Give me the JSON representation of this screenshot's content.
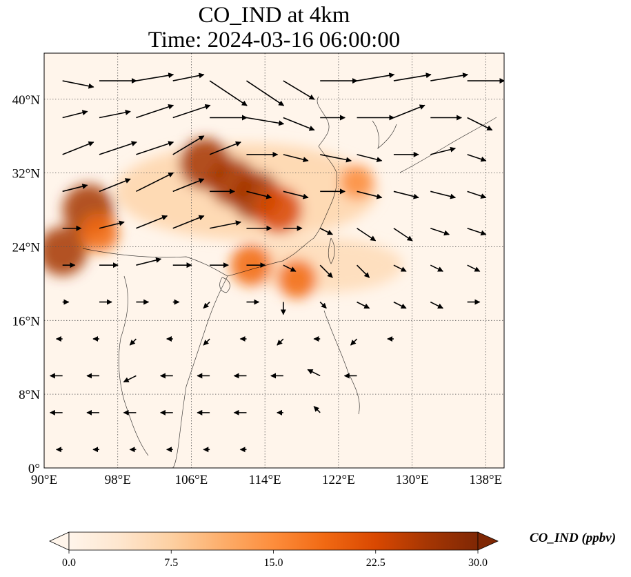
{
  "chart_data": {
    "type": "heatmap",
    "title": "CO_IND at 4km",
    "subtitle": "Time: 2024-03-16 06:00:00",
    "x_ticks": [
      "90°E",
      "98°E",
      "106°E",
      "114°E",
      "122°E",
      "130°E",
      "138°E"
    ],
    "y_ticks": [
      "0°",
      "8°N",
      "16°N",
      "24°N",
      "32°N",
      "40°N"
    ],
    "x_values": [
      90,
      98,
      106,
      114,
      122,
      130,
      138
    ],
    "y_values": [
      0,
      8,
      16,
      24,
      32,
      40
    ],
    "xlim": [
      90,
      140
    ],
    "ylim": [
      0,
      45
    ],
    "grid": true,
    "colorbar": {
      "label": "CO_IND (ppbv)",
      "ticks": [
        "0.0",
        "7.5",
        "15.0",
        "22.5",
        "30.0"
      ],
      "min": 0,
      "max": 30,
      "extend": "both",
      "colormap": [
        "#fff5eb",
        "#fee6ce",
        "#fdd0a2",
        "#fdae6b",
        "#fd8d3c",
        "#f16913",
        "#d94801",
        "#a63603",
        "#7f2704"
      ]
    },
    "hotspots": [
      {
        "lon": 107.5,
        "lat": 33.0,
        "value": 28
      },
      {
        "lon": 110.5,
        "lat": 31.0,
        "value": 25
      },
      {
        "lon": 113.0,
        "lat": 29.5,
        "value": 27
      },
      {
        "lon": 115.5,
        "lat": 28.0,
        "value": 24
      },
      {
        "lon": 94.8,
        "lat": 28.0,
        "value": 28
      },
      {
        "lon": 92.0,
        "lat": 23.5,
        "value": 26
      },
      {
        "lon": 96.0,
        "lat": 25.5,
        "value": 18
      },
      {
        "lon": 112.5,
        "lat": 22.0,
        "value": 20
      },
      {
        "lon": 117.5,
        "lat": 20.5,
        "value": 18
      },
      {
        "lon": 124.0,
        "lat": 31.0,
        "value": 14
      }
    ],
    "wind_vectors": [
      {
        "lon": 92,
        "lat": 42,
        "u": 5,
        "v": -1
      },
      {
        "lon": 96,
        "lat": 42,
        "u": 6,
        "v": 0
      },
      {
        "lon": 100,
        "lat": 42,
        "u": 6,
        "v": 1
      },
      {
        "lon": 104,
        "lat": 42,
        "u": 5,
        "v": 1
      },
      {
        "lon": 108,
        "lat": 42,
        "u": 6,
        "v": -4
      },
      {
        "lon": 112,
        "lat": 42,
        "u": 6,
        "v": -4
      },
      {
        "lon": 116,
        "lat": 42,
        "u": 5,
        "v": -3
      },
      {
        "lon": 120,
        "lat": 42,
        "u": 6,
        "v": 0
      },
      {
        "lon": 124,
        "lat": 42,
        "u": 6,
        "v": 1
      },
      {
        "lon": 128,
        "lat": 42,
        "u": 6,
        "v": 1
      },
      {
        "lon": 132,
        "lat": 42,
        "u": 6,
        "v": 1
      },
      {
        "lon": 136,
        "lat": 42,
        "u": 6,
        "v": 0
      },
      {
        "lon": 92,
        "lat": 38,
        "u": 4,
        "v": 1
      },
      {
        "lon": 96,
        "lat": 38,
        "u": 5,
        "v": 1
      },
      {
        "lon": 100,
        "lat": 38,
        "u": 6,
        "v": 2
      },
      {
        "lon": 104,
        "lat": 38,
        "u": 6,
        "v": 2
      },
      {
        "lon": 108,
        "lat": 38,
        "u": 6,
        "v": 0
      },
      {
        "lon": 112,
        "lat": 38,
        "u": 6,
        "v": -1
      },
      {
        "lon": 116,
        "lat": 38,
        "u": 5,
        "v": -2
      },
      {
        "lon": 120,
        "lat": 38,
        "u": 4,
        "v": 0
      },
      {
        "lon": 124,
        "lat": 38,
        "u": 6,
        "v": 0
      },
      {
        "lon": 128,
        "lat": 38,
        "u": 5,
        "v": 2
      },
      {
        "lon": 132,
        "lat": 38,
        "u": 5,
        "v": 0
      },
      {
        "lon": 136,
        "lat": 38,
        "u": 4,
        "v": -2
      },
      {
        "lon": 92,
        "lat": 34,
        "u": 5,
        "v": 2
      },
      {
        "lon": 96,
        "lat": 34,
        "u": 6,
        "v": 2
      },
      {
        "lon": 100,
        "lat": 34,
        "u": 6,
        "v": 2
      },
      {
        "lon": 104,
        "lat": 34,
        "u": 5,
        "v": 3
      },
      {
        "lon": 108,
        "lat": 34,
        "u": 5,
        "v": 2
      },
      {
        "lon": 112,
        "lat": 34,
        "u": 5,
        "v": 0
      },
      {
        "lon": 116,
        "lat": 34,
        "u": 4,
        "v": -1
      },
      {
        "lon": 120,
        "lat": 34,
        "u": 5,
        "v": -1
      },
      {
        "lon": 124,
        "lat": 34,
        "u": 4,
        "v": -1
      },
      {
        "lon": 128,
        "lat": 34,
        "u": 4,
        "v": 0
      },
      {
        "lon": 132,
        "lat": 34,
        "u": 4,
        "v": 1
      },
      {
        "lon": 136,
        "lat": 34,
        "u": 3,
        "v": -1
      },
      {
        "lon": 92,
        "lat": 30,
        "u": 4,
        "v": 1
      },
      {
        "lon": 96,
        "lat": 30,
        "u": 5,
        "v": 2
      },
      {
        "lon": 100,
        "lat": 30,
        "u": 6,
        "v": 3
      },
      {
        "lon": 104,
        "lat": 30,
        "u": 5,
        "v": 2
      },
      {
        "lon": 108,
        "lat": 30,
        "u": 4,
        "v": 0
      },
      {
        "lon": 112,
        "lat": 30,
        "u": 4,
        "v": -1
      },
      {
        "lon": 116,
        "lat": 30,
        "u": 4,
        "v": -1
      },
      {
        "lon": 120,
        "lat": 30,
        "u": 4,
        "v": 0
      },
      {
        "lon": 124,
        "lat": 30,
        "u": 4,
        "v": -1
      },
      {
        "lon": 128,
        "lat": 30,
        "u": 4,
        "v": -1
      },
      {
        "lon": 132,
        "lat": 30,
        "u": 4,
        "v": -1
      },
      {
        "lon": 136,
        "lat": 30,
        "u": 3,
        "v": -1
      },
      {
        "lon": 92,
        "lat": 26,
        "u": 3,
        "v": 0
      },
      {
        "lon": 96,
        "lat": 26,
        "u": 4,
        "v": 1
      },
      {
        "lon": 100,
        "lat": 26,
        "u": 5,
        "v": 2
      },
      {
        "lon": 104,
        "lat": 26,
        "u": 5,
        "v": 2
      },
      {
        "lon": 108,
        "lat": 26,
        "u": 5,
        "v": 1
      },
      {
        "lon": 112,
        "lat": 26,
        "u": 4,
        "v": 0
      },
      {
        "lon": 116,
        "lat": 26,
        "u": 3,
        "v": 0
      },
      {
        "lon": 120,
        "lat": 26,
        "u": 2,
        "v": -1
      },
      {
        "lon": 124,
        "lat": 26,
        "u": 3,
        "v": -2
      },
      {
        "lon": 128,
        "lat": 26,
        "u": 3,
        "v": -2
      },
      {
        "lon": 132,
        "lat": 26,
        "u": 3,
        "v": -1
      },
      {
        "lon": 136,
        "lat": 26,
        "u": 3,
        "v": -1
      },
      {
        "lon": 92,
        "lat": 22,
        "u": 2,
        "v": 0
      },
      {
        "lon": 96,
        "lat": 22,
        "u": 3,
        "v": 0
      },
      {
        "lon": 100,
        "lat": 22,
        "u": 4,
        "v": 1
      },
      {
        "lon": 104,
        "lat": 22,
        "u": 3,
        "v": 0
      },
      {
        "lon": 108,
        "lat": 22,
        "u": 3,
        "v": 0
      },
      {
        "lon": 112,
        "lat": 22,
        "u": 3,
        "v": 0
      },
      {
        "lon": 116,
        "lat": 22,
        "u": 2,
        "v": -1
      },
      {
        "lon": 120,
        "lat": 22,
        "u": 2,
        "v": -2
      },
      {
        "lon": 124,
        "lat": 22,
        "u": 2,
        "v": -2
      },
      {
        "lon": 128,
        "lat": 22,
        "u": 2,
        "v": -1
      },
      {
        "lon": 132,
        "lat": 22,
        "u": 2,
        "v": -1
      },
      {
        "lon": 136,
        "lat": 22,
        "u": 2,
        "v": -1
      },
      {
        "lon": 92,
        "lat": 18,
        "u": 1,
        "v": 0
      },
      {
        "lon": 96,
        "lat": 18,
        "u": 2,
        "v": 0
      },
      {
        "lon": 100,
        "lat": 18,
        "u": 2,
        "v": 0
      },
      {
        "lon": 104,
        "lat": 18,
        "u": 1,
        "v": 0
      },
      {
        "lon": 108,
        "lat": 18,
        "u": -1,
        "v": -1
      },
      {
        "lon": 112,
        "lat": 18,
        "u": 2,
        "v": 0
      },
      {
        "lon": 116,
        "lat": 18,
        "u": 0,
        "v": -2
      },
      {
        "lon": 120,
        "lat": 18,
        "u": 1,
        "v": -1
      },
      {
        "lon": 124,
        "lat": 18,
        "u": 2,
        "v": -1
      },
      {
        "lon": 128,
        "lat": 18,
        "u": 2,
        "v": -1
      },
      {
        "lon": 132,
        "lat": 18,
        "u": 2,
        "v": -1
      },
      {
        "lon": 136,
        "lat": 18,
        "u": 2,
        "v": 0
      },
      {
        "lon": 92,
        "lat": 14,
        "u": -1,
        "v": 0
      },
      {
        "lon": 96,
        "lat": 14,
        "u": -1,
        "v": 0
      },
      {
        "lon": 100,
        "lat": 14,
        "u": -1,
        "v": -1
      },
      {
        "lon": 104,
        "lat": 14,
        "u": -1,
        "v": 0
      },
      {
        "lon": 108,
        "lat": 14,
        "u": -1,
        "v": -1
      },
      {
        "lon": 112,
        "lat": 14,
        "u": -1,
        "v": 0
      },
      {
        "lon": 116,
        "lat": 14,
        "u": -1,
        "v": -1
      },
      {
        "lon": 120,
        "lat": 14,
        "u": -1,
        "v": 0
      },
      {
        "lon": 124,
        "lat": 14,
        "u": -1,
        "v": -1
      },
      {
        "lon": 128,
        "lat": 14,
        "u": -1,
        "v": 0
      },
      {
        "lon": 92,
        "lat": 10,
        "u": -2,
        "v": 0
      },
      {
        "lon": 96,
        "lat": 10,
        "u": -2,
        "v": 0
      },
      {
        "lon": 100,
        "lat": 10,
        "u": -2,
        "v": -1
      },
      {
        "lon": 104,
        "lat": 10,
        "u": -2,
        "v": 0
      },
      {
        "lon": 108,
        "lat": 10,
        "u": -2,
        "v": 0
      },
      {
        "lon": 112,
        "lat": 10,
        "u": -2,
        "v": 0
      },
      {
        "lon": 116,
        "lat": 10,
        "u": -2,
        "v": 0
      },
      {
        "lon": 120,
        "lat": 10,
        "u": -2,
        "v": 1
      },
      {
        "lon": 124,
        "lat": 10,
        "u": -2,
        "v": 0
      },
      {
        "lon": 92,
        "lat": 6,
        "u": -2,
        "v": 0
      },
      {
        "lon": 96,
        "lat": 6,
        "u": -2,
        "v": 0
      },
      {
        "lon": 100,
        "lat": 6,
        "u": -2,
        "v": 0
      },
      {
        "lon": 104,
        "lat": 6,
        "u": -2,
        "v": 0
      },
      {
        "lon": 108,
        "lat": 6,
        "u": -2,
        "v": 0
      },
      {
        "lon": 112,
        "lat": 6,
        "u": -2,
        "v": 0
      },
      {
        "lon": 116,
        "lat": 6,
        "u": -1,
        "v": 0
      },
      {
        "lon": 120,
        "lat": 6,
        "u": -1,
        "v": 1
      },
      {
        "lon": 92,
        "lat": 2,
        "u": -1,
        "v": 0
      },
      {
        "lon": 96,
        "lat": 2,
        "u": -1,
        "v": 0
      },
      {
        "lon": 100,
        "lat": 2,
        "u": -1,
        "v": 0
      },
      {
        "lon": 104,
        "lat": 2,
        "u": -1,
        "v": 0
      },
      {
        "lon": 108,
        "lat": 2,
        "u": -1,
        "v": 0
      },
      {
        "lon": 112,
        "lat": 2,
        "u": -1,
        "v": 0
      }
    ]
  }
}
